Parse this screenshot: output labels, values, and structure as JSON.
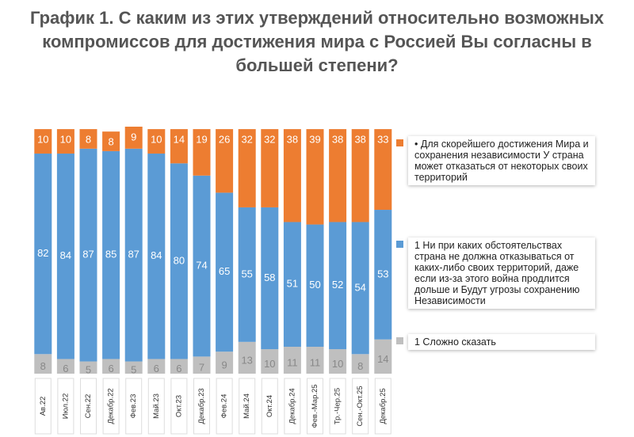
{
  "chart_data": {
    "type": "stacked_bar",
    "title": "График 1. С каким из этих утверждений относительно возможных компромиссов для достижения мира с Россией Вы согласны в большей степени?",
    "categories": [
      "Ав.22",
      "Июл.22",
      "Сен.22",
      "Декабр.22",
      "Фев.23",
      "Май.23",
      "Окт.23",
      "Декабр.23",
      "Фев.24",
      "Май.24",
      "Окт.24",
      "Декабр.24",
      "Фев.-Мар.25",
      "Тр.-Чер.25",
      "Сен.-Окт.25",
      "Декабр.25"
    ],
    "series": [
      {
        "name": "1 Сложно сказать",
        "color": "#bfbfbf",
        "values": [
          8,
          6,
          5,
          6,
          5,
          6,
          6,
          7,
          9,
          13,
          10,
          11,
          11,
          10,
          8,
          14
        ]
      },
      {
        "name": "1 Ни при каких обстоятельствах страна не должна отказываться от каких-либо своих территорий, даже если из-за этого война продлится дольше и Будут угрозы сохранению Независимости",
        "color": "#5b9bd5",
        "values": [
          82,
          84,
          87,
          85,
          87,
          84,
          80,
          74,
          65,
          55,
          58,
          51,
          50,
          52,
          54,
          53
        ]
      },
      {
        "name": "• Для скорейшего достижения Мира и сохранения независимости У страна может отказаться от некоторых своих территорий",
        "color": "#ed7d31",
        "values": [
          10,
          10,
          8,
          8,
          9,
          10,
          14,
          19,
          26,
          32,
          32,
          38,
          39,
          38,
          38,
          33
        ]
      }
    ],
    "ylim": [
      0,
      101
    ]
  }
}
